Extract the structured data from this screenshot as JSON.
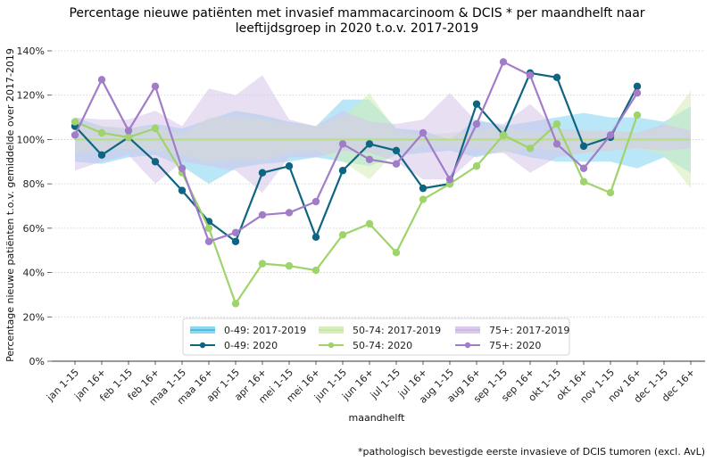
{
  "chart_data": {
    "type": "line",
    "title_lines": [
      "Percentage nieuwe patiënten met invasief mammacarcinoom & DCIS * per maandhelft naar",
      "leeftijdsgroep in 2020 t.o.v. 2017-2019"
    ],
    "xlabel": "maandhelft",
    "ylabel": "Percentage nieuwe patiënten t.o.v. gemiddelde over 2017-2019",
    "ylim": [
      0,
      140
    ],
    "yticks": [
      0,
      20,
      40,
      60,
      80,
      100,
      120,
      140
    ],
    "ytick_labels": [
      "0%",
      "20%",
      "40%",
      "60%",
      "80%",
      "100%",
      "120%",
      "140%"
    ],
    "grid": "horizontal-dotted",
    "reference_line": 100,
    "categories": [
      "jan 1-15",
      "jan 16+",
      "feb 1-15",
      "feb 16+",
      "maa 1-15",
      "maa 16+",
      "apr 1-15",
      "apr 16+",
      "mei 1-15",
      "mei 16+",
      "jun 1-15",
      "jun 16+",
      "jul 1-15",
      "jul 16+",
      "aug 1-15",
      "aug 16+",
      "sep 1-15",
      "sep 16+",
      "okt 1-15",
      "okt 16+",
      "nov 1-15",
      "nov 16+",
      "dec 1-15",
      "dec 16+"
    ],
    "bands": [
      {
        "name": "0-49: 2017-2019",
        "color": "#7fd3f0",
        "upper": [
          110,
          106,
          105,
          107,
          105,
          109,
          113,
          111,
          108,
          106,
          118,
          118,
          105,
          104,
          100,
          109,
          106,
          108,
          110,
          112,
          110,
          110,
          108,
          115
        ],
        "lower": [
          90,
          89,
          92,
          93,
          88,
          80,
          87,
          89,
          90,
          92,
          90,
          88,
          93,
          94,
          95,
          92,
          95,
          92,
          90,
          90,
          90,
          87,
          92,
          85
        ]
      },
      {
        "name": "50-74: 2017-2019",
        "color": "#d3ecb5",
        "upper": [
          107,
          106,
          105,
          106,
          102,
          110,
          110,
          109,
          107,
          106,
          110,
          121,
          104,
          102,
          103,
          104,
          106,
          103,
          104,
          104,
          104,
          103,
          106,
          122
        ],
        "lower": [
          94,
          95,
          96,
          95,
          93,
          90,
          91,
          91,
          94,
          95,
          90,
          82,
          95,
          97,
          96,
          96,
          94,
          96,
          95,
          94,
          95,
          96,
          93,
          78
        ]
      },
      {
        "name": "75+: 2017-2019",
        "color": "#d6c4ea",
        "upper": [
          110,
          109,
          109,
          113,
          106,
          123,
          120,
          129,
          109,
          106,
          113,
          108,
          107,
          109,
          121,
          108,
          107,
          116,
          105,
          104,
          104,
          103,
          107,
          104
        ],
        "lower": [
          86,
          90,
          93,
          80,
          90,
          88,
          86,
          76,
          92,
          92,
          95,
          94,
          90,
          82,
          82,
          93,
          94,
          85,
          92,
          94,
          95,
          96,
          95,
          96
        ]
      }
    ],
    "series": [
      {
        "name": "0-49: 2020",
        "color": "#0d6582",
        "values": [
          106,
          93,
          101,
          90,
          77,
          63,
          54,
          85,
          88,
          56,
          86,
          98,
          95,
          78,
          80,
          116,
          102,
          130,
          128,
          97,
          101,
          124
        ]
      },
      {
        "name": "50-74: 2020",
        "color": "#9fd36b",
        "values": [
          108,
          103,
          101,
          105,
          85,
          60,
          26,
          44,
          43,
          41,
          57,
          62,
          49,
          73,
          80,
          88,
          102,
          96,
          107,
          81,
          76,
          111
        ]
      },
      {
        "name": "75+: 2020",
        "color": "#a17cc9",
        "values": [
          102,
          127,
          104,
          124,
          87,
          54,
          58,
          66,
          67,
          72,
          98,
          91,
          89,
          103,
          82,
          107,
          135,
          129,
          98,
          87,
          102,
          121
        ]
      }
    ],
    "legend": {
      "placement": "lower-center",
      "ncol": 3,
      "entries": [
        {
          "label": "0-49: 2017-2019",
          "kind": "band",
          "color": "#7fd3f0",
          "line": "#3cb4dd"
        },
        {
          "label": "50-74: 2017-2019",
          "kind": "band",
          "color": "#d3ecb5",
          "line": "#c4e6a2"
        },
        {
          "label": "75+: 2017-2019",
          "kind": "band",
          "color": "#d6c4ea",
          "line": "#c8b2e2"
        },
        {
          "label": "0-49: 2020",
          "kind": "line",
          "color": "#0d6582"
        },
        {
          "label": "50-74: 2020",
          "kind": "line",
          "color": "#9fd36b"
        },
        {
          "label": "75+: 2020",
          "kind": "line",
          "color": "#a17cc9"
        }
      ]
    },
    "footnote": "*pathologisch bevestigde eerste invasieve of DCIS tumoren (excl. AvL)"
  }
}
